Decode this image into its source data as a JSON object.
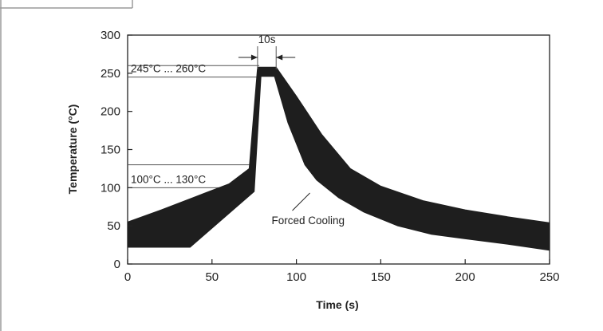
{
  "chart_data": {
    "type": "area",
    "title": "",
    "xlabel": "Time (s)",
    "ylabel": "Temperature (°C)",
    "xlim": [
      0,
      250
    ],
    "ylim": [
      0,
      300
    ],
    "xticks": [
      0,
      50,
      100,
      150,
      200,
      250
    ],
    "yticks": [
      0,
      50,
      100,
      150,
      200,
      250,
      300
    ],
    "grid": false,
    "legend": "none",
    "band_color": "#1e1e1e",
    "series": [
      {
        "role": "upper",
        "x": [
          0,
          20,
          40,
          60,
          72,
          77,
          88,
          100,
          115,
          132,
          150,
          175,
          200,
          225,
          250
        ],
        "y": [
          55,
          71,
          88,
          105,
          125,
          258,
          258,
          220,
          170,
          125,
          102,
          83,
          71,
          62,
          54
        ]
      },
      {
        "role": "lower",
        "x": [
          0,
          37,
          75,
          79,
          87,
          95,
          105,
          112,
          125,
          140,
          160,
          180,
          200,
          225,
          250
        ],
        "y": [
          22,
          22,
          95,
          246,
          246,
          185,
          130,
          110,
          87,
          68,
          50,
          39,
          33,
          26,
          18
        ]
      }
    ],
    "reference_lines": [
      {
        "y": 130,
        "label": ""
      },
      {
        "y": 100,
        "label": "100°C ... 130°C"
      },
      {
        "y": 260,
        "label": ""
      },
      {
        "y": 245,
        "label": "245°C ... 260°C"
      }
    ],
    "annotations": [
      {
        "text": "10s",
        "x_from": 77,
        "x_to": 88
      },
      {
        "text": "Forced Cooling",
        "x": 108,
        "y": 93
      }
    ]
  }
}
